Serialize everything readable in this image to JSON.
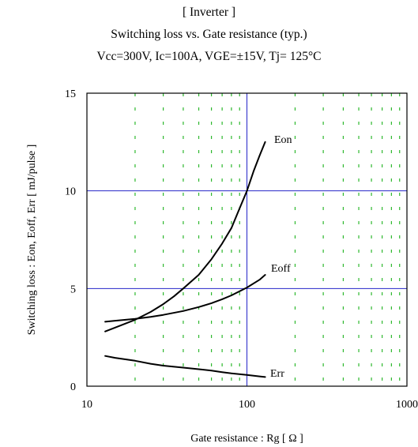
{
  "chart_data": {
    "type": "line",
    "title": "[ Inverter ]",
    "subtitle": "Switching loss  vs.  Gate resistance (typ.)",
    "conditions": "Vcc=300V, Ic=100A, VGE=±15V, Tj= 125°C",
    "xlabel": "Gate resistance  :  Rg  [ Ω ]",
    "ylabel": "Switching loss  :  Eon, Eoff, Err  [ mJ/pulse ]",
    "x_scale": "log",
    "xlim": [
      10,
      1000
    ],
    "ylim": [
      0,
      15
    ],
    "x_ticks": [
      10,
      100,
      1000
    ],
    "x_tick_labels": [
      "10",
      "100",
      "1000"
    ],
    "y_ticks": [
      0,
      5,
      10,
      15
    ],
    "y_tick_labels": [
      "0",
      "5",
      "10",
      "15"
    ],
    "grid": "major: solid blue; minor x: dashed green",
    "series": [
      {
        "name": "Eon",
        "color": "#000000",
        "x": [
          13,
          15,
          20,
          25,
          30,
          35,
          40,
          50,
          60,
          70,
          80,
          90,
          100,
          110,
          120,
          130
        ],
        "y": [
          2.8,
          3.0,
          3.4,
          3.8,
          4.2,
          4.6,
          5.0,
          5.7,
          6.5,
          7.3,
          8.1,
          9.1,
          10.0,
          11.0,
          11.8,
          12.5
        ]
      },
      {
        "name": "Eoff",
        "color": "#000000",
        "x": [
          13,
          15,
          20,
          25,
          30,
          40,
          50,
          60,
          70,
          80,
          100,
          120,
          130
        ],
        "y": [
          3.3,
          3.35,
          3.45,
          3.55,
          3.65,
          3.85,
          4.05,
          4.25,
          4.45,
          4.65,
          5.05,
          5.45,
          5.7
        ]
      },
      {
        "name": "Err",
        "color": "#000000",
        "x": [
          13,
          15,
          20,
          25,
          30,
          40,
          50,
          60,
          70,
          80,
          100,
          120,
          130
        ],
        "y": [
          1.55,
          1.45,
          1.3,
          1.15,
          1.05,
          0.95,
          0.87,
          0.8,
          0.72,
          0.66,
          0.58,
          0.5,
          0.47
        ]
      }
    ],
    "colors": {
      "major_grid": "#2424c8",
      "minor_grid": "#2eb82e",
      "curve": "#000000"
    }
  }
}
